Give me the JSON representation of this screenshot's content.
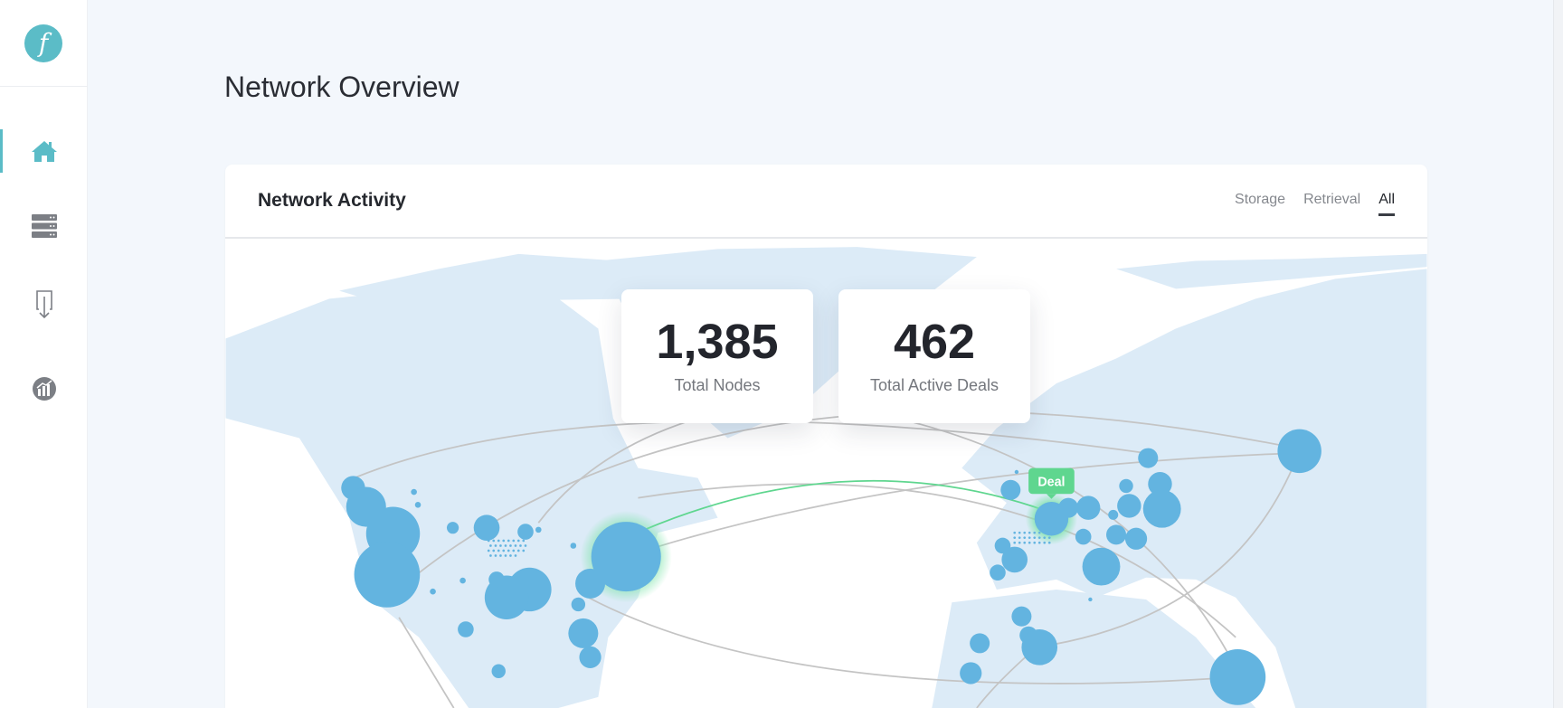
{
  "logo": {
    "glyph": "f",
    "color": "#5bbcc7"
  },
  "sidebar": {
    "items": [
      {
        "icon": "home-icon",
        "active": true
      },
      {
        "icon": "server-stack-icon",
        "active": false
      },
      {
        "icon": "download-document-icon",
        "active": false
      },
      {
        "icon": "chart-circle-icon",
        "active": false
      }
    ]
  },
  "page": {
    "title": "Network Overview"
  },
  "activity": {
    "title": "Network Activity",
    "tabs": [
      {
        "label": "Storage"
      },
      {
        "label": "Retrieval"
      },
      {
        "label": "All",
        "active": true
      }
    ],
    "stats": [
      {
        "value": "1,385",
        "label": "Total Nodes"
      },
      {
        "value": "462",
        "label": "Total Active Deals"
      }
    ],
    "deal_label": "Deal",
    "colors": {
      "node": "#63b4e0",
      "land": "#dcebf7",
      "arc": "#c4c4c4",
      "deal": "#5fd68f",
      "accent": "#5bbcc7"
    }
  }
}
